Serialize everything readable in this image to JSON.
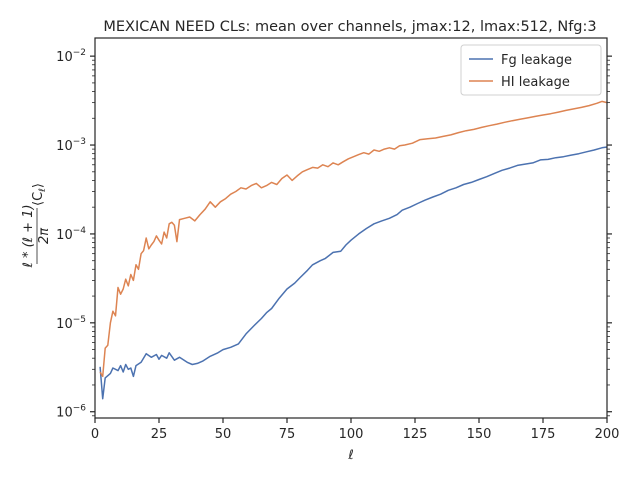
{
  "chart_data": {
    "type": "line",
    "title": "MEXICAN NEED CLs: mean over channels, jmax:12, lmax:512, Nfg:3",
    "xlabel": "ℓ",
    "ylabel_parts": {
      "num": "ℓ * (ℓ + 1)",
      "den": "2π",
      "tail": "⟨C",
      "sub": "ℓ",
      "close": "⟩"
    },
    "xlim": [
      0,
      200
    ],
    "ylim": [
      8.5e-07,
      0.016
    ],
    "yscale": "log",
    "grid": false,
    "legend_position": "top-right",
    "x_ticks": [
      0,
      25,
      50,
      75,
      100,
      125,
      150,
      175,
      200
    ],
    "x_tick_labels": [
      "0",
      "25",
      "50",
      "75",
      "100",
      "125",
      "150",
      "175",
      "200"
    ],
    "y_ticks": [
      {
        "value": 1e-06,
        "base": "10",
        "exp": "−6"
      },
      {
        "value": 1e-05,
        "base": "10",
        "exp": "−5"
      },
      {
        "value": 0.0001,
        "base": "10",
        "exp": "−4"
      },
      {
        "value": 0.001,
        "base": "10",
        "exp": "−3"
      },
      {
        "value": 0.01,
        "base": "10",
        "exp": "−2"
      }
    ],
    "series": [
      {
        "name": "Fg leakage",
        "color": "#4c72b0",
        "points": [
          [
            2,
            3.2e-06
          ],
          [
            3,
            1.4e-06
          ],
          [
            4,
            2.4e-06
          ],
          [
            6,
            2.7e-06
          ],
          [
            7,
            3.1e-06
          ],
          [
            9,
            2.9e-06
          ],
          [
            10,
            3.3e-06
          ],
          [
            11,
            2.8e-06
          ],
          [
            12,
            3.4e-06
          ],
          [
            13,
            3e-06
          ],
          [
            14,
            3.1e-06
          ],
          [
            15,
            2.5e-06
          ],
          [
            16,
            3.3e-06
          ],
          [
            18,
            3.6e-06
          ],
          [
            20,
            4.5e-06
          ],
          [
            22,
            4.1e-06
          ],
          [
            24,
            4.4e-06
          ],
          [
            25,
            3.9e-06
          ],
          [
            26,
            4.3e-06
          ],
          [
            28,
            4e-06
          ],
          [
            29,
            4.6e-06
          ],
          [
            31,
            3.8e-06
          ],
          [
            33,
            4.1e-06
          ],
          [
            36,
            3.6e-06
          ],
          [
            38,
            3.4e-06
          ],
          [
            40,
            3.5e-06
          ],
          [
            42,
            3.7e-06
          ],
          [
            45,
            4.2e-06
          ],
          [
            48,
            4.6e-06
          ],
          [
            50,
            5e-06
          ],
          [
            53,
            5.3e-06
          ],
          [
            56,
            5.8e-06
          ],
          [
            59,
            7.5e-06
          ],
          [
            62,
            9.2e-06
          ],
          [
            65,
            1.12e-05
          ],
          [
            67,
            1.3e-05
          ],
          [
            69,
            1.45e-05
          ],
          [
            72,
            1.9e-05
          ],
          [
            75,
            2.4e-05
          ],
          [
            78,
            2.8e-05
          ],
          [
            80,
            3.2e-05
          ],
          [
            83,
            3.9e-05
          ],
          [
            85,
            4.5e-05
          ],
          [
            88,
            5e-05
          ],
          [
            90,
            5.3e-05
          ],
          [
            93,
            6.2e-05
          ],
          [
            96,
            6.4e-05
          ],
          [
            98,
            7.5e-05
          ],
          [
            100,
            8.5e-05
          ],
          [
            103,
            0.0001
          ],
          [
            106,
            0.000115
          ],
          [
            109,
            0.00013
          ],
          [
            112,
            0.00014
          ],
          [
            115,
            0.00015
          ],
          [
            118,
            0.000165
          ],
          [
            120,
            0.000185
          ],
          [
            123,
            0.0002
          ],
          [
            126,
            0.00022
          ],
          [
            129,
            0.00024
          ],
          [
            132,
            0.00026
          ],
          [
            135,
            0.00028
          ],
          [
            138,
            0.00031
          ],
          [
            141,
            0.00033
          ],
          [
            144,
            0.00036
          ],
          [
            147,
            0.00038
          ],
          [
            150,
            0.00041
          ],
          [
            153,
            0.00044
          ],
          [
            156,
            0.00048
          ],
          [
            159,
            0.00052
          ],
          [
            162,
            0.00055
          ],
          [
            165,
            0.00059
          ],
          [
            168,
            0.00061
          ],
          [
            171,
            0.00063
          ],
          [
            174,
            0.00068
          ],
          [
            177,
            0.00069
          ],
          [
            180,
            0.00072
          ],
          [
            183,
            0.00074
          ],
          [
            186,
            0.00077
          ],
          [
            189,
            0.0008
          ],
          [
            192,
            0.00084
          ],
          [
            195,
            0.00088
          ],
          [
            198,
            0.00093
          ],
          [
            200,
            0.00095
          ]
        ]
      },
      {
        "name": "HI leakage",
        "color": "#dd8452",
        "points": [
          [
            2,
            2.8e-06
          ],
          [
            3,
            2.5e-06
          ],
          [
            4,
            5.2e-06
          ],
          [
            5,
            5.6e-06
          ],
          [
            6,
            1e-05
          ],
          [
            7,
            1.35e-05
          ],
          [
            8,
            1.2e-05
          ],
          [
            9,
            2.5e-05
          ],
          [
            10,
            2.1e-05
          ],
          [
            11,
            2.4e-05
          ],
          [
            12,
            3.1e-05
          ],
          [
            13,
            2.6e-05
          ],
          [
            14,
            3.5e-05
          ],
          [
            15,
            3e-05
          ],
          [
            16,
            4.5e-05
          ],
          [
            17,
            4e-05
          ],
          [
            18,
            6e-05
          ],
          [
            19,
            6.5e-05
          ],
          [
            20,
            9e-05
          ],
          [
            21,
            6.8e-05
          ],
          [
            22,
            7.5e-05
          ],
          [
            23,
            8.2e-05
          ],
          [
            24,
            9.5e-05
          ],
          [
            25,
            8.5e-05
          ],
          [
            26,
            7.7e-05
          ],
          [
            27,
            0.000105
          ],
          [
            28,
            9e-05
          ],
          [
            29,
            0.00013
          ],
          [
            30,
            0.000135
          ],
          [
            31,
            0.000125
          ],
          [
            32,
            8.2e-05
          ],
          [
            33,
            0.000145
          ],
          [
            35,
            0.00015
          ],
          [
            37,
            0.000155
          ],
          [
            39,
            0.00014
          ],
          [
            41,
            0.000165
          ],
          [
            43,
            0.00019
          ],
          [
            45,
            0.00023
          ],
          [
            47,
            0.0002
          ],
          [
            49,
            0.00023
          ],
          [
            51,
            0.00025
          ],
          [
            53,
            0.00028
          ],
          [
            55,
            0.0003
          ],
          [
            57,
            0.00033
          ],
          [
            59,
            0.00032
          ],
          [
            61,
            0.00035
          ],
          [
            63,
            0.00037
          ],
          [
            65,
            0.00033
          ],
          [
            67,
            0.00035
          ],
          [
            69,
            0.00038
          ],
          [
            71,
            0.00036
          ],
          [
            73,
            0.00042
          ],
          [
            75,
            0.00046
          ],
          [
            77,
            0.0004
          ],
          [
            79,
            0.00045
          ],
          [
            81,
            0.0005
          ],
          [
            83,
            0.00053
          ],
          [
            85,
            0.00056
          ],
          [
            87,
            0.00055
          ],
          [
            89,
            0.0006
          ],
          [
            91,
            0.00057
          ],
          [
            93,
            0.00063
          ],
          [
            95,
            0.0006
          ],
          [
            97,
            0.00065
          ],
          [
            99,
            0.0007
          ],
          [
            101,
            0.00074
          ],
          [
            103,
            0.00078
          ],
          [
            105,
            0.00082
          ],
          [
            107,
            0.00079
          ],
          [
            109,
            0.00088
          ],
          [
            111,
            0.00085
          ],
          [
            113,
            0.0009
          ],
          [
            115,
            0.00093
          ],
          [
            117,
            0.0009
          ],
          [
            119,
            0.00098
          ],
          [
            121,
            0.001
          ],
          [
            124,
            0.00105
          ],
          [
            127,
            0.00115
          ],
          [
            130,
            0.00118
          ],
          [
            133,
            0.0012
          ],
          [
            136,
            0.00125
          ],
          [
            139,
            0.0013
          ],
          [
            142,
            0.00138
          ],
          [
            145,
            0.00145
          ],
          [
            148,
            0.0015
          ],
          [
            151,
            0.00158
          ],
          [
            154,
            0.00165
          ],
          [
            157,
            0.00172
          ],
          [
            160,
            0.0018
          ],
          [
            163,
            0.00188
          ],
          [
            166,
            0.00195
          ],
          [
            169,
            0.00202
          ],
          [
            172,
            0.0021
          ],
          [
            175,
            0.00218
          ],
          [
            178,
            0.00225
          ],
          [
            181,
            0.00235
          ],
          [
            184,
            0.00245
          ],
          [
            187,
            0.00255
          ],
          [
            190,
            0.00265
          ],
          [
            193,
            0.00278
          ],
          [
            196,
            0.00295
          ],
          [
            198,
            0.0031
          ],
          [
            200,
            0.003
          ]
        ]
      }
    ]
  }
}
